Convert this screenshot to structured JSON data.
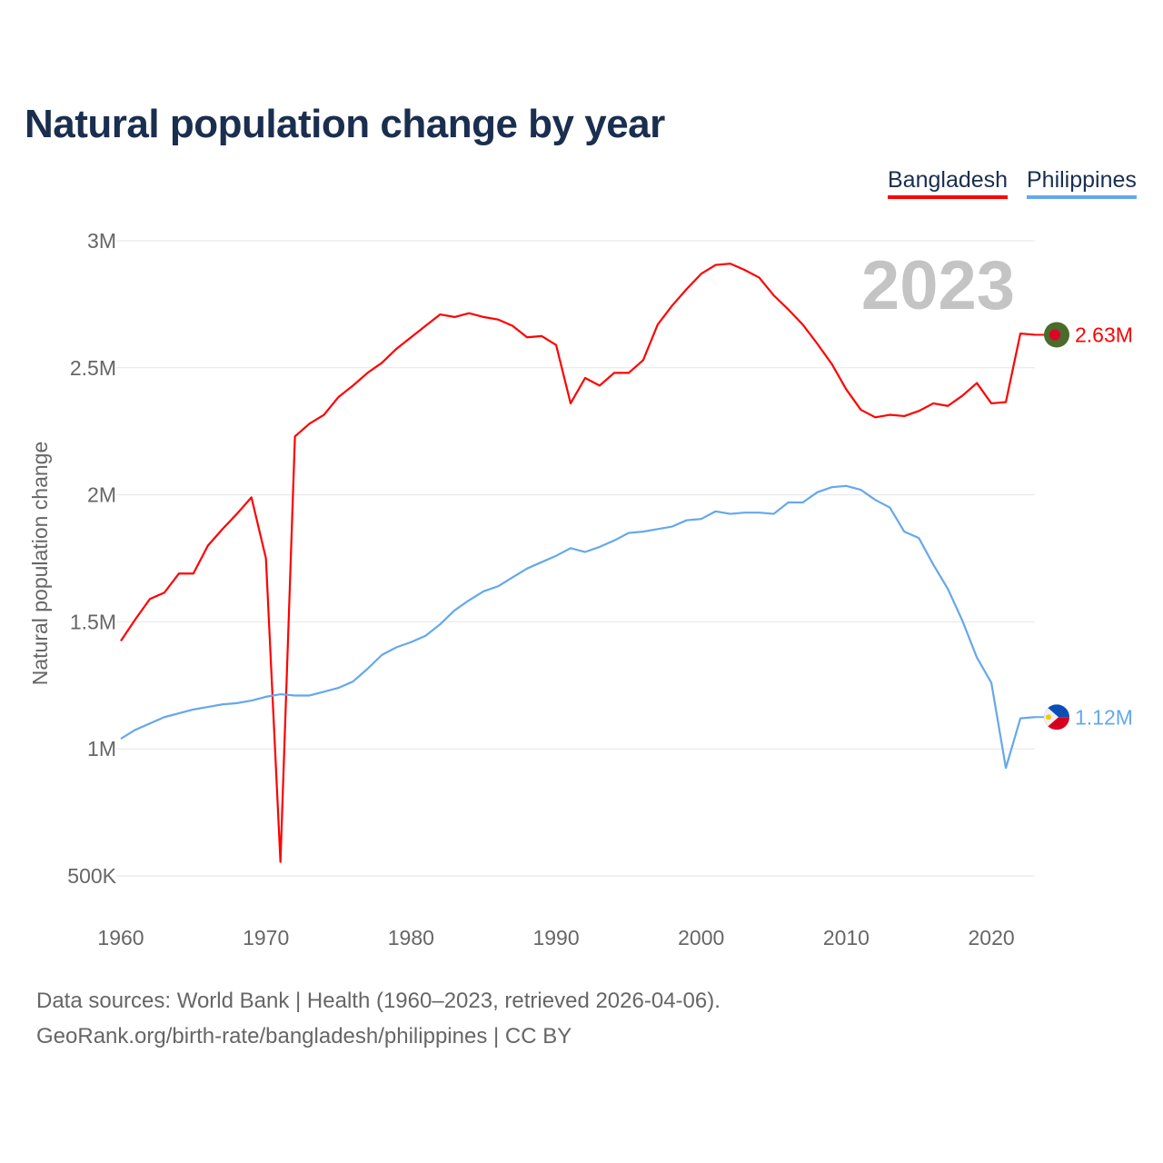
{
  "chart_data": {
    "type": "line",
    "title": "Natural population change by year",
    "ylabel": "Natural population change",
    "xlabel": "",
    "xlim": [
      1960,
      2023
    ],
    "ylim": [
      500000,
      3000000
    ],
    "grid": true,
    "legend_placement": "top-right",
    "year_label": "2023",
    "x_ticks": [
      1960,
      1970,
      1980,
      1990,
      2000,
      2010,
      2020
    ],
    "x_tick_labels": [
      "1960",
      "1970",
      "1980",
      "1990",
      "2000",
      "2010",
      "2020"
    ],
    "y_ticks": [
      500000,
      1000000,
      1500000,
      2000000,
      2500000,
      3000000
    ],
    "y_tick_labels": [
      "500K",
      "1M",
      "1.5M",
      "2M",
      "2.5M",
      "3M"
    ],
    "x": [
      1960,
      1961,
      1962,
      1963,
      1964,
      1965,
      1966,
      1967,
      1968,
      1969,
      1970,
      1971,
      1972,
      1973,
      1974,
      1975,
      1976,
      1977,
      1978,
      1979,
      1980,
      1981,
      1982,
      1983,
      1984,
      1985,
      1986,
      1987,
      1988,
      1989,
      1990,
      1991,
      1992,
      1993,
      1994,
      1995,
      1996,
      1997,
      1998,
      1999,
      2000,
      2001,
      2002,
      2003,
      2004,
      2005,
      2006,
      2007,
      2008,
      2009,
      2010,
      2011,
      2012,
      2013,
      2014,
      2015,
      2016,
      2017,
      2018,
      2019,
      2020,
      2021,
      2022,
      2023
    ],
    "series": [
      {
        "name": "Bangladesh",
        "color": "#ff0000",
        "end_label": "2.63M",
        "flag": "bangladesh-flag",
        "values": [
          1425000,
          1510000,
          1590000,
          1615000,
          1690000,
          1690000,
          1800000,
          1865000,
          1925000,
          1990000,
          1750000,
          555000,
          2230000,
          2280000,
          2315000,
          2385000,
          2430000,
          2480000,
          2520000,
          2575000,
          2620000,
          2665000,
          2710000,
          2700000,
          2715000,
          2700000,
          2690000,
          2665000,
          2620000,
          2625000,
          2590000,
          2360000,
          2460000,
          2430000,
          2480000,
          2480000,
          2530000,
          2670000,
          2745000,
          2810000,
          2870000,
          2905000,
          2910000,
          2885000,
          2855000,
          2785000,
          2730000,
          2670000,
          2595000,
          2515000,
          2415000,
          2335000,
          2305000,
          2315000,
          2310000,
          2330000,
          2360000,
          2350000,
          2390000,
          2440000,
          2360000,
          2365000,
          2635000,
          2630000
        ]
      },
      {
        "name": "Philippines",
        "color": "#64a8ec",
        "end_label": "1.12M",
        "flag": "philippines-flag",
        "values": [
          1040000,
          1075000,
          1100000,
          1125000,
          1140000,
          1155000,
          1165000,
          1175000,
          1180000,
          1190000,
          1205000,
          1215000,
          1210000,
          1210000,
          1225000,
          1240000,
          1265000,
          1315000,
          1370000,
          1400000,
          1420000,
          1445000,
          1490000,
          1545000,
          1585000,
          1620000,
          1640000,
          1675000,
          1710000,
          1735000,
          1760000,
          1790000,
          1775000,
          1795000,
          1820000,
          1850000,
          1855000,
          1865000,
          1875000,
          1900000,
          1905000,
          1935000,
          1925000,
          1930000,
          1930000,
          1925000,
          1970000,
          1970000,
          2010000,
          2030000,
          2035000,
          2020000,
          1980000,
          1950000,
          1855000,
          1830000,
          1725000,
          1630000,
          1505000,
          1360000,
          1260000,
          925000,
          1120000,
          1125000
        ]
      }
    ]
  },
  "footer": {
    "line1": "Data sources: World Bank | Health (1960–2023, retrieved 2026-04-06).",
    "line2": "GeoRank.org/birth-rate/bangladesh/philippines | CC BY"
  }
}
